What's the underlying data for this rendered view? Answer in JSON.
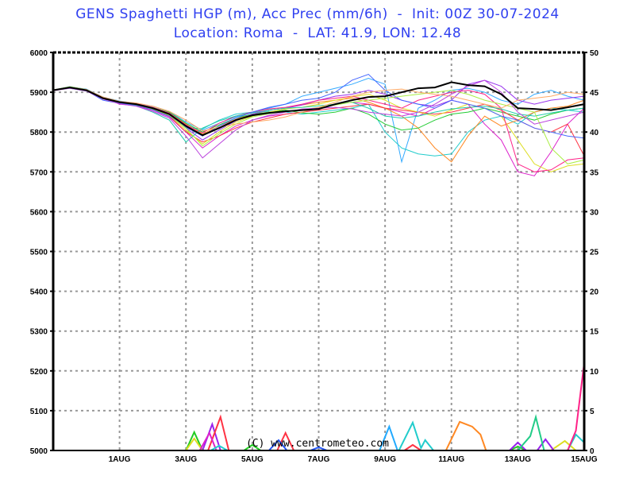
{
  "chart_data": {
    "type": "line",
    "title_line1": "GENS Spaghetti HGP (m), Acc Prec (mm/6h)  -  Init: 00Z 30-07-2024",
    "title_line2": "Location: Roma  -  LAT: 41.9, LON: 12.48",
    "credit": "(C) www.centrometeo.com",
    "x_unit": "hours since 00Z 30-07-2024",
    "xlim": [
      0,
      384
    ],
    "x_ticks": [
      {
        "hour": 48,
        "label": "1AUG"
      },
      {
        "hour": 96,
        "label": "3AUG"
      },
      {
        "hour": 144,
        "label": "5AUG"
      },
      {
        "hour": 192,
        "label": "7AUG"
      },
      {
        "hour": 240,
        "label": "9AUG"
      },
      {
        "hour": 288,
        "label": "11AUG"
      },
      {
        "hour": 336,
        "label": "13AUG"
      },
      {
        "hour": 384,
        "label": "15AUG"
      }
    ],
    "left_axis": {
      "label": "HGP (m)",
      "ylim": [
        5000,
        6000
      ],
      "ticks": [
        "5000",
        "5100",
        "5200",
        "5300",
        "5400",
        "5500",
        "5600",
        "5700",
        "5800",
        "5900",
        "6000"
      ]
    },
    "right_axis": {
      "label": "Acc Prec (mm/6h)",
      "ylim": [
        0,
        50
      ],
      "ticks": [
        "0",
        "5",
        "10",
        "15",
        "20",
        "25",
        "30",
        "35",
        "40",
        "45",
        "50"
      ]
    },
    "grid": true,
    "hgp_step_hours": 12,
    "hgp_mean": {
      "name": "ensemble mean",
      "color": "#000000",
      "values": [
        5905,
        5912,
        5905,
        5885,
        5875,
        5870,
        5860,
        5845,
        5815,
        5792,
        5810,
        5830,
        5842,
        5848,
        5852,
        5855,
        5858,
        5870,
        5880,
        5888,
        5890,
        5900,
        5910,
        5912,
        5925,
        5918,
        5915,
        5895,
        5860,
        5858,
        5855,
        5862,
        5870
      ]
    },
    "hgp_members": [
      {
        "color": "#33aaff",
        "values": [
          5906,
          5913,
          5908,
          5888,
          5878,
          5872,
          5865,
          5852,
          5825,
          5805,
          5822,
          5838,
          5850,
          5860,
          5870,
          5890,
          5900,
          5910,
          5920,
          5935,
          5920,
          5725,
          5860,
          5880,
          5905,
          5910,
          5900,
          5880,
          5870,
          5895,
          5905,
          5890,
          5880
        ]
      },
      {
        "color": "#22cccc",
        "values": [
          5905,
          5910,
          5903,
          5884,
          5872,
          5868,
          5858,
          5840,
          5812,
          5808,
          5830,
          5845,
          5850,
          5852,
          5850,
          5845,
          5850,
          5855,
          5860,
          5870,
          5800,
          5760,
          5745,
          5740,
          5745,
          5800,
          5830,
          5840,
          5820,
          5850,
          5860,
          5855,
          5850
        ]
      },
      {
        "color": "#dd22cc",
        "values": [
          5904,
          5911,
          5906,
          5886,
          5870,
          5866,
          5855,
          5838,
          5800,
          5760,
          5790,
          5815,
          5830,
          5840,
          5845,
          5850,
          5860,
          5870,
          5875,
          5870,
          5860,
          5850,
          5840,
          5860,
          5880,
          5870,
          5820,
          5780,
          5700,
          5690,
          5750,
          5820,
          5860
        ]
      },
      {
        "color": "#ff8822",
        "values": [
          5905,
          5912,
          5905,
          5886,
          5874,
          5870,
          5860,
          5848,
          5820,
          5795,
          5815,
          5832,
          5845,
          5855,
          5860,
          5868,
          5875,
          5880,
          5885,
          5875,
          5860,
          5840,
          5810,
          5760,
          5725,
          5790,
          5840,
          5815,
          5830,
          5850,
          5860,
          5865,
          5880
        ]
      },
      {
        "color": "#22cc33",
        "values": [
          5906,
          5914,
          5907,
          5887,
          5877,
          5870,
          5862,
          5850,
          5822,
          5800,
          5818,
          5835,
          5845,
          5850,
          5855,
          5848,
          5845,
          5850,
          5860,
          5845,
          5820,
          5805,
          5810,
          5830,
          5845,
          5850,
          5860,
          5850,
          5840,
          5830,
          5845,
          5855,
          5860
        ]
      },
      {
        "color": "#ff3344",
        "values": [
          5905,
          5912,
          5905,
          5886,
          5876,
          5872,
          5860,
          5840,
          5800,
          5775,
          5790,
          5810,
          5825,
          5835,
          5845,
          5850,
          5855,
          5860,
          5865,
          5870,
          5860,
          5855,
          5850,
          5845,
          5850,
          5860,
          5870,
          5855,
          5830,
          5810,
          5800,
          5820,
          5740
        ]
      },
      {
        "color": "#9933ee",
        "values": [
          5905,
          5911,
          5905,
          5885,
          5874,
          5868,
          5858,
          5843,
          5810,
          5780,
          5805,
          5828,
          5845,
          5855,
          5860,
          5868,
          5880,
          5890,
          5895,
          5905,
          5895,
          5880,
          5870,
          5865,
          5880,
          5920,
          5930,
          5915,
          5880,
          5870,
          5880,
          5885,
          5890
        ]
      },
      {
        "color": "#dddd22",
        "values": [
          5905,
          5912,
          5904,
          5884,
          5872,
          5869,
          5857,
          5842,
          5805,
          5770,
          5800,
          5825,
          5840,
          5850,
          5858,
          5862,
          5870,
          5880,
          5888,
          5895,
          5880,
          5860,
          5850,
          5840,
          5855,
          5870,
          5860,
          5840,
          5780,
          5720,
          5700,
          5715,
          5720
        ]
      },
      {
        "color": "#ff2288",
        "values": [
          5906,
          5913,
          5906,
          5887,
          5876,
          5871,
          5862,
          5848,
          5818,
          5798,
          5822,
          5840,
          5850,
          5858,
          5862,
          5870,
          5880,
          5885,
          5890,
          5880,
          5870,
          5860,
          5880,
          5890,
          5900,
          5905,
          5895,
          5860,
          5720,
          5700,
          5705,
          5730,
          5735
        ]
      },
      {
        "color": "#22ccaa",
        "values": [
          5905,
          5911,
          5905,
          5885,
          5872,
          5866,
          5850,
          5830,
          5775,
          5810,
          5828,
          5840,
          5848,
          5855,
          5860,
          5862,
          5866,
          5870,
          5875,
          5860,
          5840,
          5835,
          5840,
          5850,
          5858,
          5862,
          5865,
          5858,
          5845,
          5840,
          5848,
          5855,
          5860
        ]
      },
      {
        "color": "#4466ff",
        "values": [
          5905,
          5912,
          5904,
          5880,
          5872,
          5868,
          5856,
          5840,
          5812,
          5790,
          5815,
          5835,
          5850,
          5862,
          5870,
          5880,
          5885,
          5900,
          5930,
          5945,
          5905,
          5880,
          5870,
          5860,
          5880,
          5870,
          5860,
          5840,
          5830,
          5810,
          5800,
          5790,
          5785
        ]
      },
      {
        "color": "#aaee44",
        "values": [
          5905,
          5912,
          5905,
          5886,
          5875,
          5869,
          5858,
          5842,
          5810,
          5765,
          5795,
          5820,
          5838,
          5846,
          5852,
          5856,
          5862,
          5868,
          5875,
          5880,
          5885,
          5890,
          5895,
          5900,
          5905,
          5895,
          5880,
          5870,
          5860,
          5850,
          5760,
          5720,
          5730
        ]
      },
      {
        "color": "#ffaa66",
        "values": [
          5905,
          5913,
          5907,
          5888,
          5877,
          5873,
          5865,
          5852,
          5830,
          5803,
          5812,
          5820,
          5825,
          5830,
          5838,
          5850,
          5862,
          5875,
          5890,
          5900,
          5905,
          5908,
          5900,
          5895,
          5890,
          5880,
          5870,
          5860,
          5880,
          5885,
          5890,
          5900,
          5895
        ]
      },
      {
        "color": "#bb44dd",
        "values": [
          5904,
          5910,
          5903,
          5883,
          5871,
          5865,
          5852,
          5835,
          5790,
          5735,
          5770,
          5805,
          5830,
          5842,
          5850,
          5858,
          5860,
          5862,
          5858,
          5850,
          5845,
          5840,
          5850,
          5870,
          5895,
          5915,
          5930,
          5900,
          5850,
          5820,
          5830,
          5840,
          5850
        ]
      }
    ],
    "precip_members": [
      {
        "color": "#22cc22",
        "points": [
          [
            96,
            0
          ],
          [
            102,
            2.3
          ],
          [
            108,
            0
          ],
          [
            138,
            0
          ],
          [
            144,
            0.7
          ],
          [
            150,
            0
          ],
          [
            330,
            0
          ],
          [
            336,
            0.5
          ],
          [
            342,
            0
          ]
        ]
      },
      {
        "color": "#dddd22",
        "points": [
          [
            96,
            0
          ],
          [
            102,
            1.5
          ],
          [
            108,
            0
          ],
          [
            360,
            0
          ],
          [
            370,
            1.2
          ],
          [
            378,
            0
          ]
        ]
      },
      {
        "color": "#9922ee",
        "points": [
          [
            108,
            0
          ],
          [
            115,
            3.3
          ],
          [
            121,
            0
          ],
          [
            330,
            0
          ],
          [
            336,
            1
          ],
          [
            342,
            0
          ],
          [
            350,
            0
          ],
          [
            356,
            1.4
          ],
          [
            362,
            0
          ]
        ]
      },
      {
        "color": "#ff3344",
        "points": [
          [
            112,
            0
          ],
          [
            121,
            4.2
          ],
          [
            127,
            0
          ],
          [
            162,
            0
          ],
          [
            168,
            2.2
          ],
          [
            174,
            0
          ],
          [
            254,
            0
          ],
          [
            260,
            0.7
          ],
          [
            266,
            0
          ]
        ]
      },
      {
        "color": "#dd22cc",
        "points": [
          [
            106,
            0
          ],
          [
            113,
            2.2
          ],
          [
            118,
            0
          ]
        ]
      },
      {
        "color": "#2255ff",
        "points": [
          [
            156,
            0
          ],
          [
            163,
            1.3
          ],
          [
            169,
            0
          ],
          [
            186,
            0
          ],
          [
            192,
            0.4
          ],
          [
            198,
            0
          ]
        ]
      },
      {
        "color": "#22aaff",
        "points": [
          [
            236,
            0
          ],
          [
            243,
            3.0
          ],
          [
            249,
            0
          ]
        ]
      },
      {
        "color": "#22cccc",
        "points": [
          [
            114,
            0
          ],
          [
            120,
            0.6
          ],
          [
            126,
            0
          ],
          [
            250,
            0
          ],
          [
            260,
            3.5
          ],
          [
            266,
            0.3
          ],
          [
            269,
            1.3
          ],
          [
            275,
            0
          ],
          [
            372,
            0
          ],
          [
            378,
            2
          ],
          [
            384,
            1
          ]
        ]
      },
      {
        "color": "#ff8822",
        "points": [
          [
            284,
            0
          ],
          [
            294,
            3.6
          ],
          [
            303,
            3.0
          ],
          [
            309,
            2.0
          ],
          [
            313,
            0
          ]
        ]
      },
      {
        "color": "#22cc88",
        "points": [
          [
            336,
            0
          ],
          [
            345,
            1.8
          ],
          [
            349,
            4.2
          ],
          [
            355,
            0
          ]
        ]
      },
      {
        "color": "#ff2288",
        "points": [
          [
            372,
            0
          ],
          [
            378,
            2.5
          ],
          [
            384,
            11
          ]
        ]
      }
    ]
  }
}
